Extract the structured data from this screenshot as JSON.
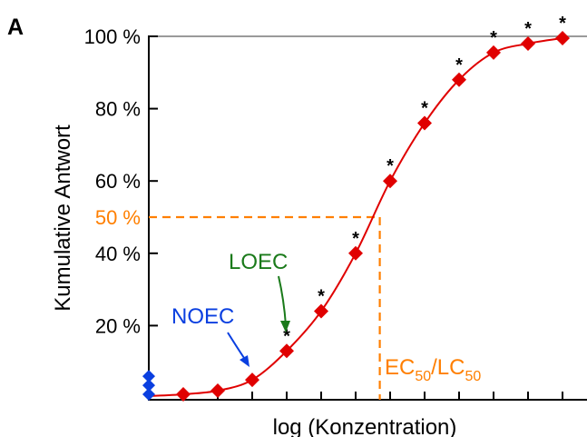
{
  "panel_label": "A",
  "chart_data": {
    "type": "line",
    "title": "",
    "xlabel": "log (Konzentration)",
    "ylabel": "Kumulative Antwort",
    "xlim": [
      0,
      13
    ],
    "ylim": [
      0,
      100
    ],
    "y_ticks": [
      {
        "value": 20,
        "label": "20 %"
      },
      {
        "value": 40,
        "label": "40 %"
      },
      {
        "value": 60,
        "label": "60 %"
      },
      {
        "value": 80,
        "label": "80 %"
      },
      {
        "value": 100,
        "label": "100 %"
      }
    ],
    "x_tick_count": 12,
    "grid": false,
    "series": [
      {
        "color": "#e00000",
        "x": [
          1,
          2,
          3,
          4,
          5,
          6,
          7,
          8,
          9,
          10,
          11,
          12
        ],
        "values": [
          1,
          2,
          5,
          13,
          24,
          40,
          60,
          76,
          88,
          95.5,
          98,
          99.5
        ],
        "significant": [
          false,
          false,
          false,
          true,
          true,
          true,
          true,
          true,
          true,
          true,
          true,
          true
        ]
      }
    ],
    "controls": {
      "color": "#0a3fe0",
      "x": 0,
      "values": [
        1,
        3.5,
        6
      ]
    },
    "reference_line": {
      "color": "#ff7f00",
      "y": 50,
      "y_label": "50 %",
      "x": 6.7,
      "x_label_main_1": "EC",
      "x_label_sub_1": "50",
      "x_label_mid": "/LC",
      "x_label_sub_2": "50"
    },
    "annotations": [
      {
        "text": "LOEC",
        "color": "#1a7a1a",
        "target_x": 4
      },
      {
        "text": "NOEC",
        "color": "#0a3fe0",
        "target_x": 3
      }
    ],
    "significance_marker": "*"
  }
}
